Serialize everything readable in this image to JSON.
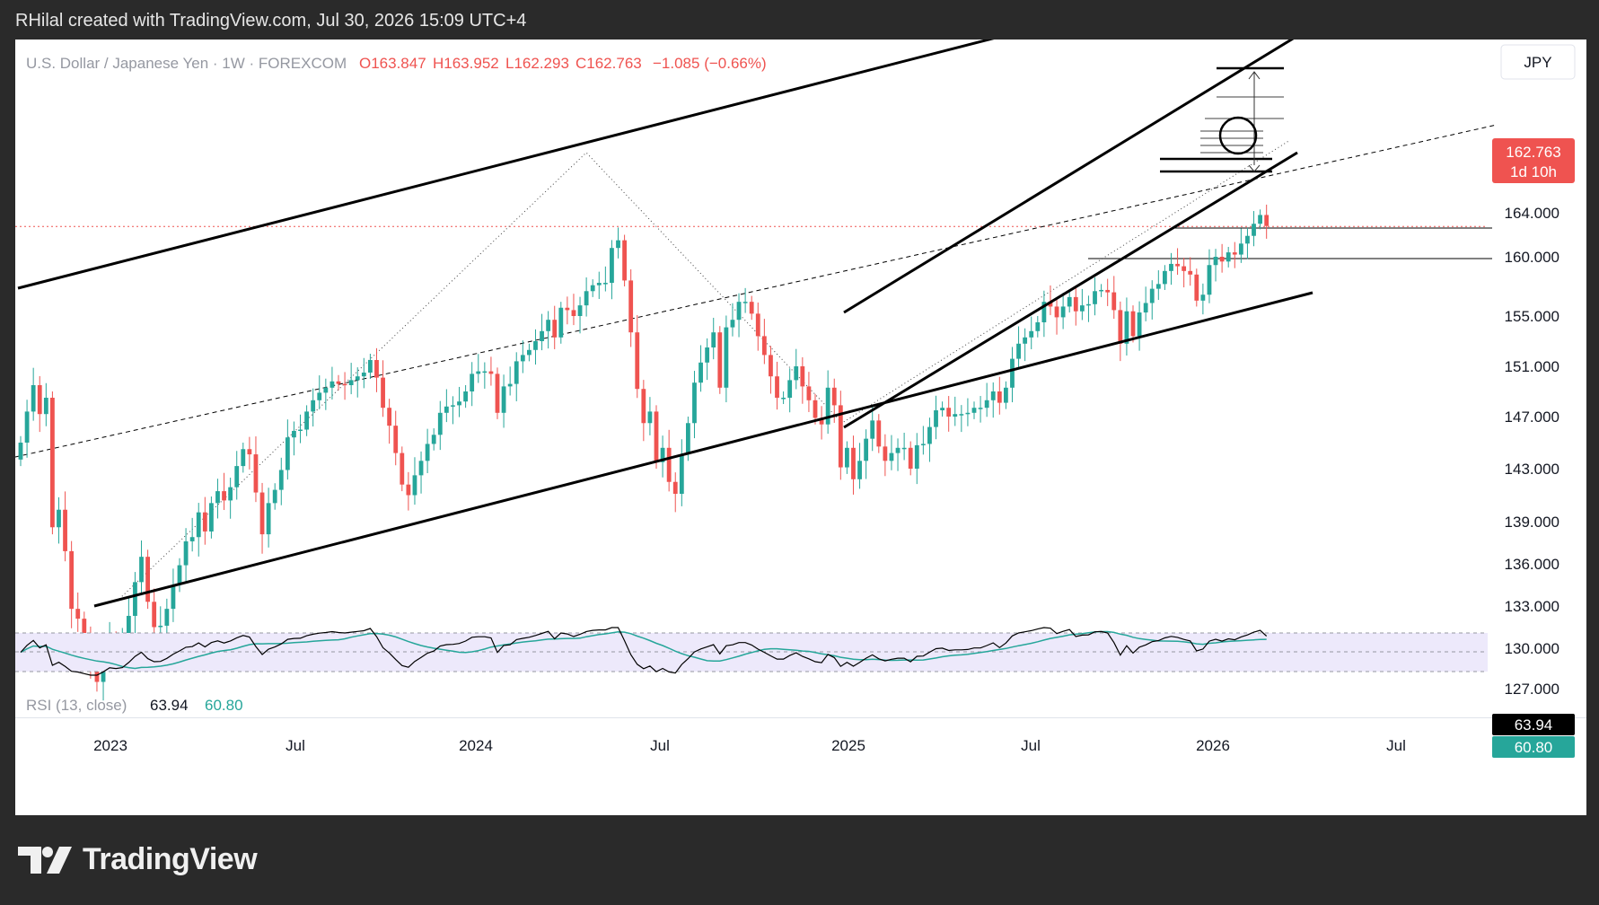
{
  "header": {
    "attribution": "RHilal created with TradingView.com, Jul 30, 2026 15:09 UTC+4"
  },
  "legend": {
    "symbol": "U.S. Dollar / Japanese Yen · 1W · FOREXCOM",
    "open": "O163.847",
    "high": "H163.952",
    "low": "L162.293",
    "close": "C162.763",
    "change": "−1.085 (−0.66%)"
  },
  "currency_button": "JPY",
  "price_tag": {
    "price": "162.763",
    "countdown": "1d 10h"
  },
  "rsi": {
    "label": "RSI (13, close)",
    "value": "63.94",
    "ma": "60.80"
  },
  "footer": {
    "brand": "TradingView"
  },
  "colors": {
    "up": "#26a69a",
    "down": "#ef5350",
    "rsi_line": "#000000",
    "rsi_ma": "#26a69a",
    "rsi_band": "#ede9fb",
    "trend_line": "#000000"
  },
  "chart_data": {
    "type": "candlestick",
    "x_axis_labels": [
      "2023",
      "Jul",
      "2024",
      "Jul",
      "2025",
      "Jul",
      "2026",
      "Jul"
    ],
    "y_axis_labels": [
      "127.000",
      "130.000",
      "133.000",
      "136.000",
      "139.000",
      "143.000",
      "147.000",
      "151.000",
      "155.000",
      "160.000",
      "164.000"
    ],
    "candles_close": [
      145.0,
      147.4,
      149.5,
      147.2,
      148.5,
      138.6,
      139.9,
      136.9,
      132.8,
      132.1,
      130.6,
      128.9,
      127.5,
      129.2,
      130.7,
      130.2,
      130.5,
      132.3,
      134.7,
      136.5,
      133.3,
      131.5,
      131.6,
      132.8,
      134.5,
      135.9,
      137.6,
      137.9,
      139.7,
      138.3,
      140.4,
      141.3,
      140.6,
      141.6,
      143.2,
      144.5,
      144.1,
      141.2,
      138.1,
      140.4,
      141.4,
      142.9,
      145.4,
      145.9,
      146.0,
      147.4,
      148.3,
      148.9,
      149.3,
      149.8,
      149.6,
      149.5,
      149.9,
      150.2,
      150.5,
      151.5,
      150.1,
      147.7,
      146.3,
      144.2,
      141.8,
      141.0,
      142.5,
      143.6,
      144.9,
      145.6,
      147.3,
      147.8,
      147.9,
      148.2,
      149.0,
      150.4,
      150.6,
      150.6,
      150.4,
      147.3,
      149.4,
      149.6,
      151.4,
      151.9,
      152.3,
      153.0,
      153.8,
      154.7,
      153.3,
      155.7,
      155.5,
      155.0,
      155.9,
      157.1,
      157.6,
      157.8,
      157.8,
      160.8,
      161.5,
      158.0,
      153.7,
      149.2,
      146.5,
      147.4,
      143.5,
      144.6,
      142.0,
      141.1,
      144.1,
      146.5,
      149.7,
      151.3,
      152.5,
      153.7,
      149.3,
      154.1,
      154.7,
      156.2,
      156.2,
      155.2,
      153.4,
      151.9,
      150.2,
      148.5,
      148.5,
      149.9,
      151.0,
      149.4,
      148.3,
      146.9,
      146.4,
      149.3,
      147.9,
      143.1,
      144.6,
      142.2,
      143.6,
      145.3,
      146.7,
      144.7,
      143.6,
      144.2,
      144.6,
      144.6,
      143.0,
      144.8,
      144.9,
      146.2,
      147.5,
      147.7,
      147.0,
      147.2,
      147.2,
      147.3,
      147.7,
      147.7,
      148.3,
      149.0,
      148.1,
      149.3,
      151.6,
      152.8,
      153.3,
      153.8,
      154.5,
      156.2,
      155.8,
      154.9,
      155.8,
      156.6,
      155.4,
      155.9,
      156.0,
      157.1,
      157.2,
      157.0,
      155.5,
      152.8,
      155.4,
      153.4,
      155.3,
      156.1,
      157.3,
      157.7,
      158.8,
      159.4,
      159.2,
      158.8,
      158.5,
      156.3,
      156.8,
      159.3,
      160.0,
      159.6,
      160.4,
      160.2,
      161.2,
      161.9,
      163.0,
      163.8,
      162.8
    ]
  }
}
